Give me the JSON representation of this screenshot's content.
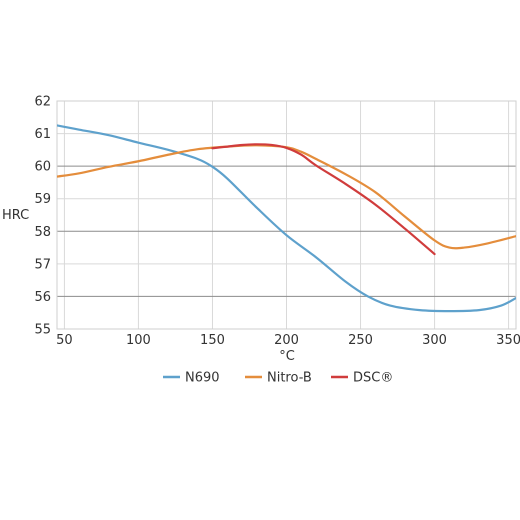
{
  "chart_data": {
    "type": "line",
    "title": "",
    "xlabel": "°C",
    "ylabel": "HRC",
    "xlim": [
      45,
      355
    ],
    "ylim": [
      55,
      62
    ],
    "x_ticks": [
      50,
      100,
      150,
      200,
      250,
      300,
      350
    ],
    "y_ticks": [
      55,
      56,
      57,
      58,
      59,
      60,
      61,
      62
    ],
    "grid": {
      "horizontal": true,
      "vertical": true,
      "emphasized_lines": [
        56,
        58,
        60
      ]
    },
    "legend_position": "bottom-center",
    "series": [
      {
        "name": "N690",
        "color": "#5ea1cc",
        "x": [
          45,
          60,
          80,
          100,
          120,
          140,
          150,
          160,
          180,
          200,
          220,
          240,
          255,
          270,
          290,
          310,
          330,
          345,
          355
        ],
        "y": [
          61.25,
          61.12,
          60.95,
          60.72,
          60.5,
          60.22,
          59.98,
          59.62,
          58.72,
          57.88,
          57.2,
          56.45,
          56.0,
          55.72,
          55.58,
          55.55,
          55.58,
          55.72,
          55.95
        ]
      },
      {
        "name": "Nitro-B",
        "color": "#e48d3c",
        "x": [
          45,
          60,
          80,
          100,
          120,
          140,
          160,
          180,
          200,
          210,
          220,
          240,
          260,
          280,
          300,
          310,
          320,
          335,
          355
        ],
        "y": [
          59.68,
          59.78,
          59.98,
          60.15,
          60.35,
          60.52,
          60.6,
          60.64,
          60.58,
          60.44,
          60.22,
          59.75,
          59.2,
          58.45,
          57.72,
          57.5,
          57.5,
          57.62,
          57.85
        ]
      },
      {
        "name": "DSC®",
        "color": "#d03c3c",
        "x": [
          150,
          160,
          170,
          180,
          190,
          200,
          210,
          220,
          240,
          260,
          280,
          300
        ],
        "y": [
          60.55,
          60.6,
          60.65,
          60.67,
          60.65,
          60.56,
          60.35,
          60.02,
          59.45,
          58.82,
          58.08,
          57.3
        ]
      }
    ]
  }
}
